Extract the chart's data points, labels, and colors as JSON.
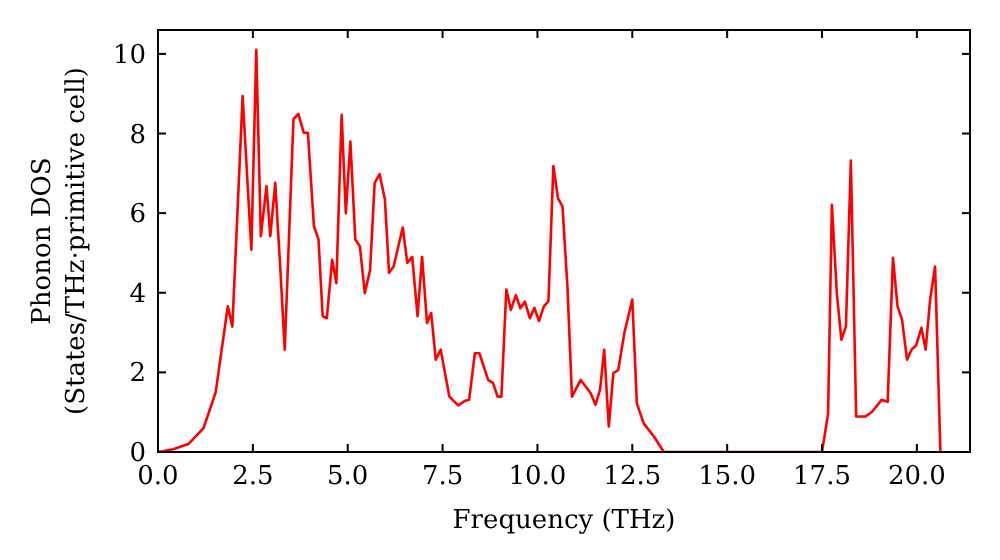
{
  "chart_data": {
    "type": "line",
    "xlabel": "Frequency (THz)",
    "ylabel": "Phonon DOS\n(States/THz·primitive cell)",
    "xlim": [
      0,
      21.4
    ],
    "ylim": [
      0,
      10.6
    ],
    "xticks": [
      {
        "value": 0,
        "label": "0.0"
      },
      {
        "value": 2.5,
        "label": "2.5"
      },
      {
        "value": 5,
        "label": "5.0"
      },
      {
        "value": 7.5,
        "label": "7.5"
      },
      {
        "value": 10,
        "label": "10.0"
      },
      {
        "value": 12.5,
        "label": "12.5"
      },
      {
        "value": 15,
        "label": "15.0"
      },
      {
        "value": 17.5,
        "label": "17.5"
      },
      {
        "value": 20,
        "label": "20.0"
      }
    ],
    "yticks": [
      0,
      2,
      4,
      6,
      8,
      10
    ],
    "grid": false,
    "marker": "none",
    "line_style": "solid",
    "series": [
      {
        "color": "#ff0000",
        "x": [
          0,
          0.4,
          0.8,
          1.2,
          1.52,
          1.84,
          1.96,
          2.23,
          2.46,
          2.59,
          2.71,
          2.86,
          2.96,
          3.09,
          3.23,
          3.34,
          3.57,
          3.7,
          3.84,
          3.95,
          4.11,
          4.23,
          4.34,
          4.45,
          4.59,
          4.7,
          4.84,
          4.95,
          5.07,
          5.2,
          5.32,
          5.45,
          5.59,
          5.71,
          5.84,
          5.98,
          6.09,
          6.21,
          6.45,
          6.57,
          6.7,
          6.84,
          6.96,
          7.09,
          7.2,
          7.32,
          7.45,
          7.68,
          7.91,
          8.08,
          8.2,
          8.35,
          8.47,
          8.7,
          8.83,
          8.95,
          9.05,
          9.18,
          9.3,
          9.43,
          9.55,
          9.67,
          9.8,
          9.92,
          10.04,
          10.17,
          10.29,
          10.42,
          10.54,
          10.66,
          10.79,
          10.91,
          11.14,
          11.4,
          11.53,
          11.65,
          11.76,
          11.88,
          12,
          12.13,
          12.29,
          12.5,
          12.62,
          12.8,
          13.07,
          13.33,
          17.5,
          17.66,
          17.76,
          17.89,
          18.01,
          18.13,
          18.26,
          18.4,
          18.64,
          18.82,
          19.07,
          19.23,
          19.37,
          19.49,
          19.61,
          19.74,
          19.86,
          19.98,
          20.12,
          20.23,
          20.35,
          20.48,
          20.62
        ],
        "values": [
          0,
          0.07,
          0.2,
          0.6,
          1.5,
          3.66,
          3.15,
          8.94,
          5.08,
          10.1,
          5.42,
          6.68,
          5.42,
          6.76,
          4.5,
          2.57,
          8.36,
          8.49,
          8.02,
          8.02,
          5.67,
          5.34,
          3.41,
          3.36,
          4.83,
          4.24,
          8.47,
          6.0,
          7.8,
          5.34,
          5.17,
          3.99,
          4.58,
          6.76,
          6.98,
          6.34,
          4.5,
          4.66,
          5.64,
          4.75,
          4.9,
          3.41,
          4.9,
          3.24,
          3.49,
          2.32,
          2.57,
          1.39,
          1.17,
          1.28,
          1.31,
          2.48,
          2.48,
          1.81,
          1.73,
          1.39,
          1.39,
          4.08,
          3.57,
          3.94,
          3.61,
          3.78,
          3.36,
          3.62,
          3.29,
          3.66,
          3.79,
          7.18,
          6.38,
          6.17,
          4.16,
          1.39,
          1.81,
          1.48,
          1.19,
          1.56,
          2.57,
          0.64,
          1.98,
          2.06,
          2.99,
          3.83,
          1.22,
          0.72,
          0.39,
          0,
          0,
          0.97,
          6.21,
          3.99,
          2.82,
          3.15,
          7.32,
          0.89,
          0.89,
          1.01,
          1.31,
          1.26,
          4.88,
          3.66,
          3.32,
          2.32,
          2.57,
          2.68,
          3.12,
          2.57,
          3.83,
          4.66,
          0
        ]
      }
    ]
  }
}
